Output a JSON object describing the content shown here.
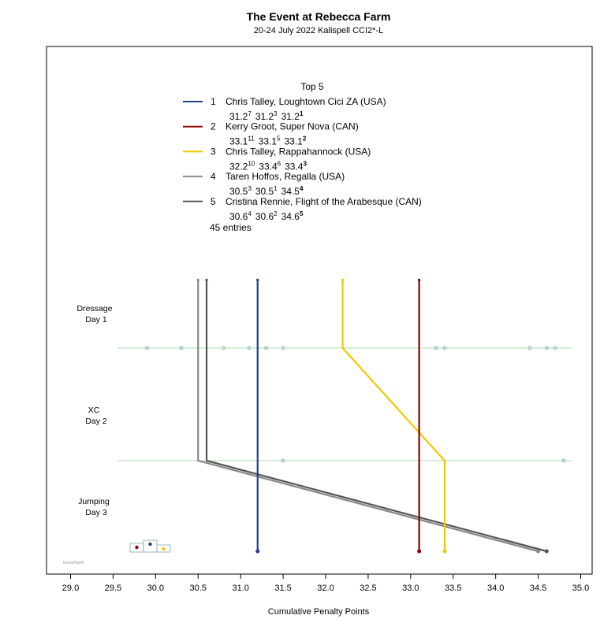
{
  "chart_data": {
    "type": "line",
    "title": "The Event at Rebecca Farm",
    "subtitle": "20-24 July 2022  Kalispell  CCI2*-L",
    "xlabel": "Cumulative Penalty Points",
    "xlim": [
      28.9,
      35.1
    ],
    "xticks": [
      "29.0",
      "29.5",
      "30.0",
      "30.5",
      "31.0",
      "31.5",
      "32.0",
      "32.5",
      "33.0",
      "33.5",
      "34.0",
      "34.5",
      "35.0"
    ],
    "phases": [
      {
        "line1": "Dressage",
        "line2": "Day 1"
      },
      {
        "line1": "XC",
        "line2": "Day 2"
      },
      {
        "line1": "Jumping",
        "line2": "Day 3"
      }
    ],
    "legend": {
      "heading": "Top 5",
      "entries_count": "45 entries",
      "items": [
        {
          "rank": "1",
          "text": "Chris Talley,  Loughtown Cici ZA  (USA)",
          "color": "#1f3f8f",
          "scores": [
            {
              "v": "31.2",
              "r": "7"
            },
            {
              "v": "31.2",
              "r": "3"
            },
            {
              "v": "31.2",
              "r": "1"
            }
          ]
        },
        {
          "rank": "2",
          "text": "Kerry Groot,  Super Nova  (CAN)",
          "color": "#8b0000",
          "scores": [
            {
              "v": "33.1",
              "r": "11"
            },
            {
              "v": "33.1",
              "r": "5"
            },
            {
              "v": "33.1",
              "r": "2"
            }
          ]
        },
        {
          "rank": "3",
          "text": "Chris Talley,  Rappahannock  (USA)",
          "color": "#f0c800",
          "scores": [
            {
              "v": "32.2",
              "r": "10"
            },
            {
              "v": "33.4",
              "r": "6"
            },
            {
              "v": "33.4",
              "r": "3"
            }
          ]
        },
        {
          "rank": "4",
          "text": "Taren Hoffos,  Regalla  (USA)",
          "color": "#888888",
          "scores": [
            {
              "v": "30.5",
              "r": "3"
            },
            {
              "v": "30.5",
              "r": "1"
            },
            {
              "v": "34.5",
              "r": "4"
            }
          ]
        },
        {
          "rank": "5",
          "text": "Cristina Rennie,  Flight of the Arabesque  (CAN)",
          "color": "#555555",
          "scores": [
            {
              "v": "30.6",
              "r": "4"
            },
            {
              "v": "30.6",
              "r": "2"
            },
            {
              "v": "34.6",
              "r": "5"
            }
          ]
        }
      ]
    },
    "series": [
      {
        "name": "Chris Talley,  Loughtown Cici ZA  (USA)",
        "color": "#1f3f8f",
        "values": [
          31.2,
          31.2,
          31.2
        ]
      },
      {
        "name": "Kerry Groot,  Super Nova  (CAN)",
        "color": "#8b0000",
        "values": [
          33.1,
          33.1,
          33.1
        ]
      },
      {
        "name": "Chris Talley,  Rappahannock  (USA)",
        "color": "#f0c800",
        "values": [
          32.2,
          33.4,
          33.4
        ]
      },
      {
        "name": "Taren Hoffos,  Regalla  (USA)",
        "color": "#888888",
        "values": [
          30.5,
          30.5,
          34.5
        ]
      },
      {
        "name": "Cristina Rennie,  Flight of the Arabesque  (CAN)",
        "color": "#555555",
        "values": [
          30.6,
          30.6,
          34.6
        ]
      }
    ],
    "other_dressage_scores": [
      29.9,
      30.3,
      30.8,
      31.1,
      31.3,
      31.5,
      33.3,
      33.4,
      34.4,
      34.6,
      34.7
    ],
    "other_xc_scores": [
      31.5,
      34.8
    ],
    "guide_color": "#90d090",
    "podium": {
      "colors": [
        "#8b0000",
        "#1f3f8f",
        "#f0c800"
      ],
      "order": [
        "2",
        "1",
        "3"
      ]
    },
    "brand": "EventPlan®"
  }
}
